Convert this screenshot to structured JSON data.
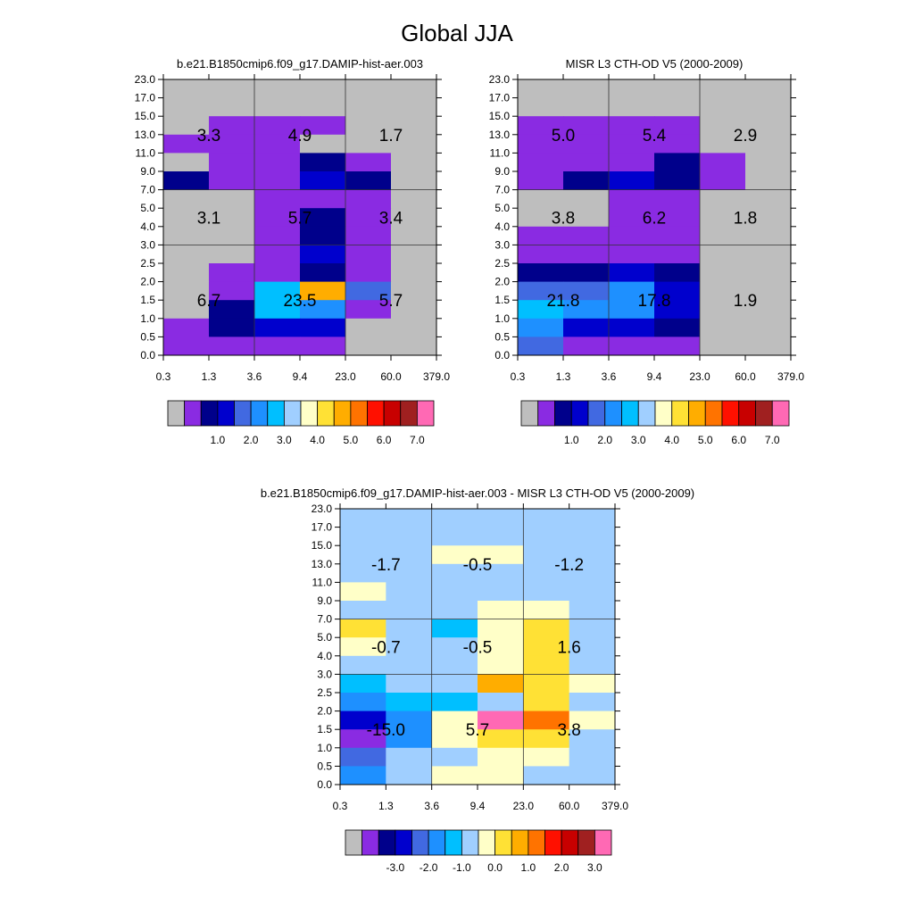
{
  "figure": {
    "title": "Global JJA"
  },
  "palette": {
    "colors": [
      "#bebebe",
      "#8a2be2",
      "#00008b",
      "#0000cd",
      "#4169e1",
      "#1e90ff",
      "#00bfff",
      "#a0cfff",
      "#ffffc8",
      "#ffe135",
      "#ffad00",
      "#ff7300",
      "#ff1000",
      "#c80000",
      "#a02020",
      "#ff69b4"
    ],
    "grey": "#bebebe"
  },
  "chart_data": [
    {
      "type": "heatmap",
      "title": "b.e21.B1850cmip6.f09_g17.DAMIP-hist-aer.003",
      "x_ticks": [
        "0.3",
        "1.3",
        "3.6",
        "9.4",
        "23.0",
        "60.0",
        "379.0"
      ],
      "y_ticks": [
        "0.0",
        "0.5",
        "1.0",
        "1.5",
        "2.0",
        "2.5",
        "3.0",
        "4.0",
        "5.0",
        "7.0",
        "9.0",
        "11.0",
        "13.0",
        "15.0",
        "17.0",
        "23.0"
      ],
      "cell_color_index_rows_top_to_bottom": [
        [
          0,
          0,
          0,
          0,
          0,
          0
        ],
        [
          0,
          0,
          0,
          0,
          0,
          0
        ],
        [
          0,
          1,
          1,
          1,
          0,
          0
        ],
        [
          1,
          1,
          1,
          0,
          0,
          0
        ],
        [
          0,
          1,
          1,
          2,
          1,
          0
        ],
        [
          2,
          1,
          1,
          3,
          2,
          0
        ],
        [
          0,
          0,
          1,
          1,
          1,
          0
        ],
        [
          0,
          0,
          1,
          2,
          1,
          0
        ],
        [
          0,
          0,
          1,
          2,
          1,
          0
        ],
        [
          0,
          0,
          1,
          3,
          1,
          0
        ],
        [
          0,
          1,
          1,
          2,
          1,
          0
        ],
        [
          0,
          1,
          6,
          10,
          4,
          0
        ],
        [
          0,
          2,
          6,
          5,
          1,
          0
        ],
        [
          1,
          2,
          3,
          3,
          0,
          0
        ],
        [
          1,
          1,
          1,
          1,
          0,
          0
        ]
      ],
      "annotations": [
        {
          "value": "3.3",
          "col": 0,
          "row": 0
        },
        {
          "value": "4.9",
          "col": 1,
          "row": 0
        },
        {
          "value": "1.7",
          "col": 2,
          "row": 0
        },
        {
          "value": "3.1",
          "col": 0,
          "row": 1
        },
        {
          "value": "5.7",
          "col": 1,
          "row": 1
        },
        {
          "value": "3.4",
          "col": 2,
          "row": 1
        },
        {
          "value": "6.7",
          "col": 0,
          "row": 2
        },
        {
          "value": "23.5",
          "col": 1,
          "row": 2
        },
        {
          "value": "5.7",
          "col": 2,
          "row": 2
        }
      ],
      "colorbar_labels": [
        "1.0",
        "2.0",
        "3.0",
        "4.0",
        "5.0",
        "6.0",
        "7.0"
      ]
    },
    {
      "type": "heatmap",
      "title": "MISR L3 CTH-OD V5 (2000-2009)",
      "x_ticks": [
        "0.3",
        "1.3",
        "3.6",
        "9.4",
        "23.0",
        "60.0",
        "379.0"
      ],
      "y_ticks": [
        "0.0",
        "0.5",
        "1.0",
        "1.5",
        "2.0",
        "2.5",
        "3.0",
        "4.0",
        "5.0",
        "7.0",
        "9.0",
        "11.0",
        "13.0",
        "15.0",
        "17.0",
        "23.0"
      ],
      "cell_color_index_rows_top_to_bottom": [
        [
          0,
          0,
          0,
          0,
          0,
          0
        ],
        [
          0,
          0,
          0,
          0,
          0,
          0
        ],
        [
          1,
          1,
          1,
          1,
          0,
          0
        ],
        [
          1,
          1,
          1,
          1,
          0,
          0
        ],
        [
          1,
          1,
          1,
          2,
          1,
          0
        ],
        [
          1,
          2,
          3,
          2,
          1,
          0
        ],
        [
          0,
          0,
          1,
          1,
          0,
          0
        ],
        [
          0,
          0,
          1,
          1,
          0,
          0
        ],
        [
          1,
          1,
          1,
          1,
          0,
          0
        ],
        [
          1,
          1,
          1,
          1,
          0,
          0
        ],
        [
          2,
          2,
          3,
          2,
          0,
          0
        ],
        [
          4,
          4,
          5,
          3,
          0,
          0
        ],
        [
          6,
          5,
          5,
          3,
          0,
          0
        ],
        [
          5,
          3,
          3,
          2,
          0,
          0
        ],
        [
          4,
          1,
          1,
          1,
          0,
          0
        ]
      ],
      "annotations": [
        {
          "value": "5.0",
          "col": 0,
          "row": 0
        },
        {
          "value": "5.4",
          "col": 1,
          "row": 0
        },
        {
          "value": "2.9",
          "col": 2,
          "row": 0
        },
        {
          "value": "3.8",
          "col": 0,
          "row": 1
        },
        {
          "value": "6.2",
          "col": 1,
          "row": 1
        },
        {
          "value": "1.8",
          "col": 2,
          "row": 1
        },
        {
          "value": "21.8",
          "col": 0,
          "row": 2
        },
        {
          "value": "17.8",
          "col": 1,
          "row": 2
        },
        {
          "value": "1.9",
          "col": 2,
          "row": 2
        }
      ],
      "colorbar_labels": [
        "1.0",
        "2.0",
        "3.0",
        "4.0",
        "5.0",
        "6.0",
        "7.0"
      ]
    },
    {
      "type": "heatmap",
      "title": "b.e21.B1850cmip6.f09_g17.DAMIP-hist-aer.003 - MISR L3 CTH-OD V5 (2000-2009)",
      "x_ticks": [
        "0.3",
        "1.3",
        "3.6",
        "9.4",
        "23.0",
        "60.0",
        "379.0"
      ],
      "y_ticks": [
        "0.0",
        "0.5",
        "1.0",
        "1.5",
        "2.0",
        "2.5",
        "3.0",
        "4.0",
        "5.0",
        "7.0",
        "9.0",
        "11.0",
        "13.0",
        "15.0",
        "17.0",
        "23.0"
      ],
      "cell_color_index_rows_top_to_bottom": [
        [
          7,
          7,
          7,
          7,
          7,
          7
        ],
        [
          7,
          7,
          7,
          7,
          7,
          7
        ],
        [
          7,
          7,
          8,
          8,
          7,
          7
        ],
        [
          7,
          7,
          7,
          7,
          7,
          7
        ],
        [
          8,
          7,
          7,
          7,
          7,
          7
        ],
        [
          7,
          7,
          7,
          8,
          8,
          7
        ],
        [
          9,
          7,
          6,
          8,
          9,
          7
        ],
        [
          8,
          7,
          7,
          8,
          9,
          7
        ],
        [
          7,
          7,
          7,
          8,
          9,
          7
        ],
        [
          6,
          7,
          7,
          10,
          9,
          8
        ],
        [
          5,
          6,
          6,
          7,
          9,
          7
        ],
        [
          3,
          5,
          8,
          15,
          11,
          8
        ],
        [
          1,
          5,
          8,
          9,
          9,
          7
        ],
        [
          4,
          7,
          7,
          8,
          8,
          7
        ],
        [
          5,
          7,
          8,
          8,
          7,
          7
        ]
      ],
      "annotations": [
        {
          "value": "-1.7",
          "col": 0,
          "row": 0
        },
        {
          "value": "-0.5",
          "col": 1,
          "row": 0
        },
        {
          "value": "-1.2",
          "col": 2,
          "row": 0
        },
        {
          "value": "-0.7",
          "col": 0,
          "row": 1
        },
        {
          "value": "-0.5",
          "col": 1,
          "row": 1
        },
        {
          "value": "1.6",
          "col": 2,
          "row": 1
        },
        {
          "value": "-15.0",
          "col": 0,
          "row": 2
        },
        {
          "value": "5.7",
          "col": 1,
          "row": 2
        },
        {
          "value": "3.8",
          "col": 2,
          "row": 2
        }
      ],
      "colorbar_labels": [
        "-3.0",
        "-2.0",
        "-1.0",
        "0.0",
        "1.0",
        "2.0",
        "3.0"
      ]
    }
  ]
}
